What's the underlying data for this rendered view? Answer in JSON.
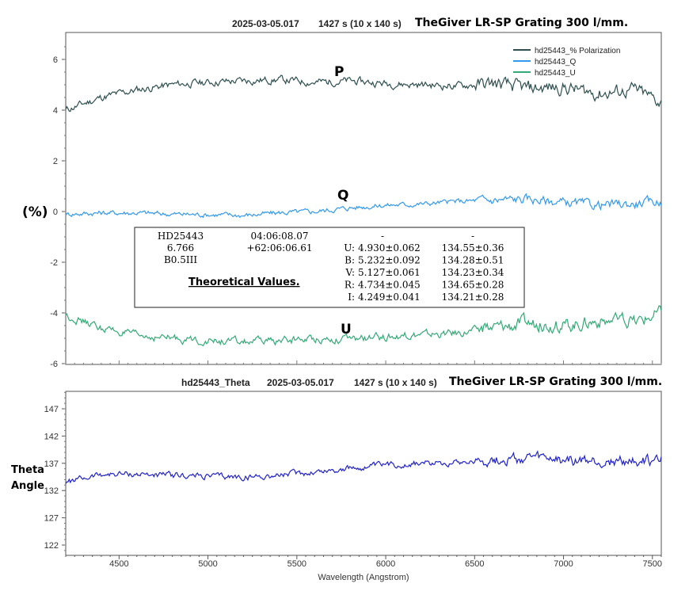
{
  "chart_data": [
    {
      "type": "line",
      "title_id": "2025-03-05.017",
      "title_exp": "1427 s (10 x 140 s)",
      "title_scope": "TheGiver LR-SP Grating 300 l/mm.",
      "ylabel": "(%)",
      "xlim": [
        4200,
        7550
      ],
      "ylim": [
        -6,
        7
      ],
      "yticks": [
        "6",
        "4",
        "2",
        "0",
        "-2",
        "-4",
        "-6"
      ],
      "ytick_values": [
        6,
        4,
        2,
        0,
        -2,
        -4,
        -6
      ],
      "legend_placement": "top-right",
      "grid": false,
      "series": [
        {
          "name": "hd25443_% Polarization",
          "label": "P",
          "color": "#2f4f4f",
          "x": [
            4200,
            4400,
            4600,
            4800,
            5000,
            5200,
            5400,
            5600,
            5800,
            6000,
            6200,
            6400,
            6600,
            6800,
            7000,
            7200,
            7400,
            7550
          ],
          "y": [
            4.0,
            4.5,
            4.8,
            5.0,
            5.1,
            5.15,
            5.2,
            5.1,
            5.15,
            5.05,
            5.0,
            4.95,
            5.05,
            4.85,
            4.9,
            4.65,
            4.8,
            4.3
          ],
          "noise": 0.12
        },
        {
          "name": "hd25443_Q",
          "label": "Q",
          "color": "#3399ee",
          "x": [
            4200,
            4400,
            4600,
            4800,
            5000,
            5200,
            5400,
            5600,
            5800,
            6000,
            6200,
            6400,
            6600,
            6800,
            7000,
            7200,
            7400,
            7550
          ],
          "y": [
            -0.1,
            -0.05,
            -0.05,
            -0.1,
            -0.12,
            -0.15,
            -0.05,
            0.0,
            0.15,
            0.25,
            0.3,
            0.4,
            0.45,
            0.5,
            0.35,
            0.25,
            0.3,
            0.4
          ],
          "noise": 0.08
        },
        {
          "name": "hd25443_U",
          "label": "U",
          "color": "#33aa77",
          "x": [
            4200,
            4400,
            4600,
            4800,
            5000,
            5200,
            5400,
            5600,
            5800,
            6000,
            6200,
            6400,
            6600,
            6800,
            7000,
            7200,
            7400,
            7550
          ],
          "y": [
            -4.1,
            -4.6,
            -4.9,
            -5.0,
            -5.1,
            -5.15,
            -5.1,
            -5.0,
            -5.05,
            -4.95,
            -4.85,
            -4.8,
            -4.6,
            -4.4,
            -4.5,
            -4.3,
            -4.4,
            -4.0
          ],
          "noise": 0.12
        }
      ],
      "inset_table": {
        "star": "HD25443",
        "ra": "04:06:08.07",
        "mag": "6.766",
        "dec": "+62:06:06.61",
        "sptype": "B0.5III",
        "caption": "Theoretical Values",
        "caption_suffix": ".",
        "header_col1": "-",
        "header_col2": "-",
        "rows": [
          {
            "band": "U:",
            "pol": "4.930±0.062",
            "theta": "134.55±0.36"
          },
          {
            "band": "B:",
            "pol": "5.232±0.092",
            "theta": "134.28±0.51"
          },
          {
            "band": "V:",
            "pol": "5.127±0.061",
            "theta": "134.23±0.34"
          },
          {
            "band": "R:",
            "pol": "4.734±0.045",
            "theta": "134.65±0.28"
          },
          {
            "band": "I:",
            "pol": "4.249±0.041",
            "theta": "134.21±0.28"
          }
        ]
      }
    },
    {
      "type": "line",
      "title_id": "hd25443_Theta",
      "title_date": "2025-03-05.017",
      "title_exp": "1427 s (10 x 140 s)",
      "title_scope": "TheGiver LR-SP Grating 300 l/mm.",
      "ylabel_line1": "Theta",
      "ylabel_line2": "Angle",
      "xlabel": "Wavelength (Angstrom)",
      "xlim": [
        4200,
        7550
      ],
      "ylim": [
        120,
        150
      ],
      "xticks": [
        "4500",
        "5000",
        "5500",
        "6000",
        "6500",
        "7000",
        "7500"
      ],
      "xtick_values": [
        4500,
        5000,
        5500,
        6000,
        6500,
        7000,
        7500
      ],
      "yticks": [
        "147",
        "142",
        "137",
        "132",
        "127",
        "122"
      ],
      "ytick_values": [
        147,
        142,
        137,
        132,
        127,
        122
      ],
      "grid": false,
      "series": [
        {
          "name": "hd25443_Theta",
          "color": "#2222cc",
          "x": [
            4200,
            4400,
            4600,
            4800,
            5000,
            5200,
            5400,
            5600,
            5800,
            6000,
            6200,
            6400,
            6600,
            6800,
            7000,
            7200,
            7400,
            7550
          ],
          "y": [
            133.5,
            135.0,
            135.0,
            134.8,
            134.6,
            134.4,
            134.8,
            135.4,
            136.0,
            136.6,
            137.0,
            137.3,
            137.6,
            137.8,
            137.6,
            137.2,
            137.4,
            137.5
          ],
          "noise": 0.45
        }
      ]
    }
  ]
}
